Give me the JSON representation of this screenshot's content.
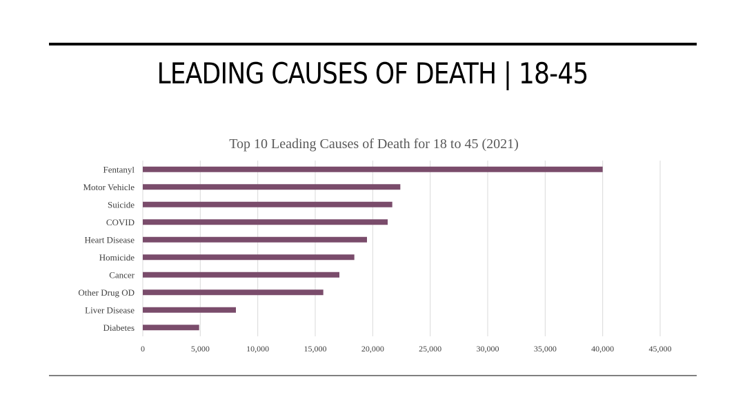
{
  "slide": {
    "title": "LEADING CAUSES OF DEATH | 18-45"
  },
  "chart_data": {
    "type": "bar",
    "orientation": "horizontal",
    "title": "Top 10 Leading Causes of Death for 18 to 45 (2021)",
    "xlabel": "",
    "ylabel": "",
    "categories": [
      "Fentanyl",
      "Motor Vehicle",
      "Suicide",
      "COVID",
      "Heart Disease",
      "Homicide",
      "Cancer",
      "Other Drug OD",
      "Liver Disease",
      "Diabetes"
    ],
    "values": [
      40000,
      22400,
      21700,
      21300,
      19500,
      18400,
      17100,
      15700,
      8100,
      4900
    ],
    "xlim": [
      0,
      45000
    ],
    "xticks": [
      0,
      5000,
      10000,
      15000,
      20000,
      25000,
      30000,
      35000,
      40000,
      45000
    ],
    "xtick_labels": [
      "0",
      "5,000",
      "10,000",
      "15,000",
      "20,000",
      "25,000",
      "30,000",
      "35,000",
      "40,000",
      "45,000"
    ],
    "grid": true,
    "legend": "none",
    "bar_color": "#7a4c6b",
    "grid_color": "#d9d9d9"
  }
}
